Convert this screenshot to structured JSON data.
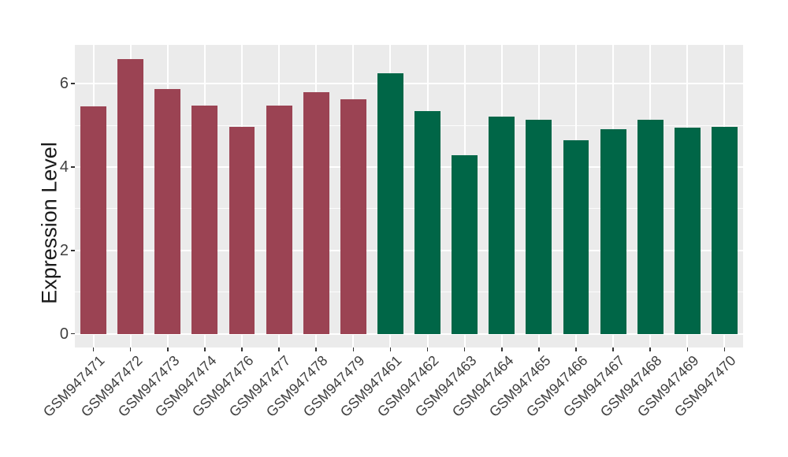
{
  "figure": {
    "background": "#FFFFFF",
    "panel_bg": "#EBEBEB",
    "grid_color": "#FFFFFF",
    "tick_color": "#333333",
    "axis_text_color": "#404040",
    "axis_title_color": "#1A1A1A"
  },
  "chart_data": {
    "type": "bar",
    "title": "",
    "xlabel": "",
    "ylabel": "Expression Level",
    "ylim": [
      -0.33,
      6.93
    ],
    "yticks_major": [
      0,
      2,
      4,
      6
    ],
    "yticks_minor": [
      1,
      3,
      5
    ],
    "grid": "on",
    "legend_position": "none",
    "bar_width_frac": 0.7,
    "series": [
      {
        "name": "group-red",
        "color": "#9B4353",
        "categories": [
          "GSM947471",
          "GSM947472",
          "GSM947473",
          "GSM947474",
          "GSM947476",
          "GSM947477",
          "GSM947478",
          "GSM947479"
        ],
        "values": [
          5.45,
          6.59,
          5.88,
          5.48,
          4.96,
          5.48,
          5.8,
          5.63
        ]
      },
      {
        "name": "group-green",
        "color": "#006647",
        "categories": [
          "GSM947461",
          "GSM947462",
          "GSM947463",
          "GSM947464",
          "GSM947465",
          "GSM947466",
          "GSM947467",
          "GSM947468",
          "GSM947469",
          "GSM947470"
        ],
        "values": [
          6.24,
          5.34,
          4.28,
          5.21,
          5.13,
          4.65,
          4.9,
          5.13,
          4.94,
          4.97
        ]
      }
    ]
  }
}
